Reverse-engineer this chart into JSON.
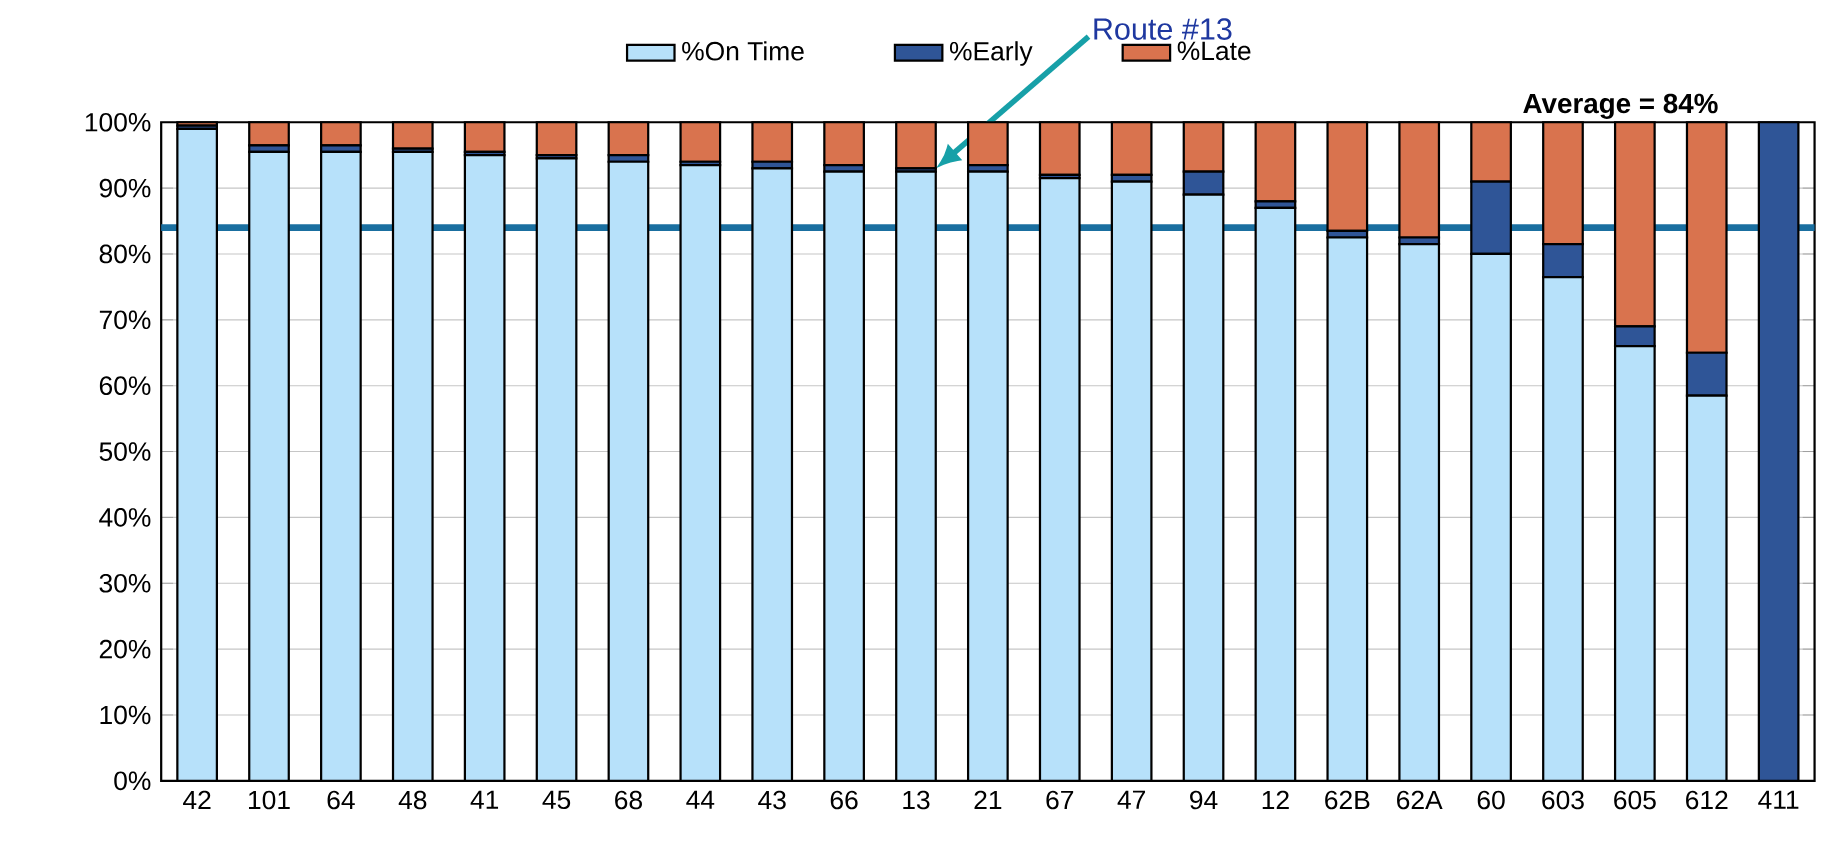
{
  "chart_data": {
    "type": "bar",
    "stacked": true,
    "categories": [
      "42",
      "101",
      "64",
      "48",
      "41",
      "45",
      "68",
      "44",
      "43",
      "66",
      "13",
      "21",
      "67",
      "47",
      "94",
      "12",
      "62B",
      "62A",
      "60",
      "603",
      "605",
      "612",
      "411"
    ],
    "series": [
      {
        "name": "%On Time",
        "color": "#b7e1fa",
        "values": [
          99,
          95.5,
          95.5,
          95.5,
          95,
          94.5,
          94,
          93.5,
          93,
          92.5,
          92.5,
          92.5,
          91.5,
          91,
          89,
          87,
          82.5,
          81.5,
          80,
          76.5,
          66,
          58.5,
          0
        ]
      },
      {
        "name": "%Early",
        "color": "#2f5597",
        "values": [
          0.5,
          1,
          1,
          0.5,
          0.5,
          0.5,
          1,
          0.5,
          1,
          1,
          0.5,
          1,
          0.5,
          1,
          3.5,
          1,
          1,
          1,
          11,
          5,
          3,
          6.5,
          100
        ]
      },
      {
        "name": "%Late",
        "color": "#d9734e",
        "values": [
          0.5,
          3.5,
          3.5,
          4,
          4.5,
          5,
          5,
          6,
          6,
          6.5,
          7,
          6.5,
          8,
          8,
          7.5,
          12,
          16.5,
          17.5,
          9,
          18.5,
          31,
          35,
          0
        ]
      }
    ],
    "ylim": [
      0,
      100
    ],
    "yticks": [
      {
        "value": 0,
        "label": "0%"
      },
      {
        "value": 10,
        "label": "10%"
      },
      {
        "value": 20,
        "label": "20%"
      },
      {
        "value": 30,
        "label": "30%"
      },
      {
        "value": 40,
        "label": "40%"
      },
      {
        "value": 50,
        "label": "50%"
      },
      {
        "value": 60,
        "label": "60%"
      },
      {
        "value": 70,
        "label": "70%"
      },
      {
        "value": 80,
        "label": "80%"
      },
      {
        "value": 90,
        "label": "90%"
      },
      {
        "value": 100,
        "label": "100%"
      }
    ],
    "grid": "y",
    "legend": "top",
    "ref_lines": [
      {
        "axis": "y",
        "value": 84,
        "color": "#1a6fa0"
      }
    ],
    "annotations": [
      "Route #13",
      "Average = 84%"
    ]
  }
}
